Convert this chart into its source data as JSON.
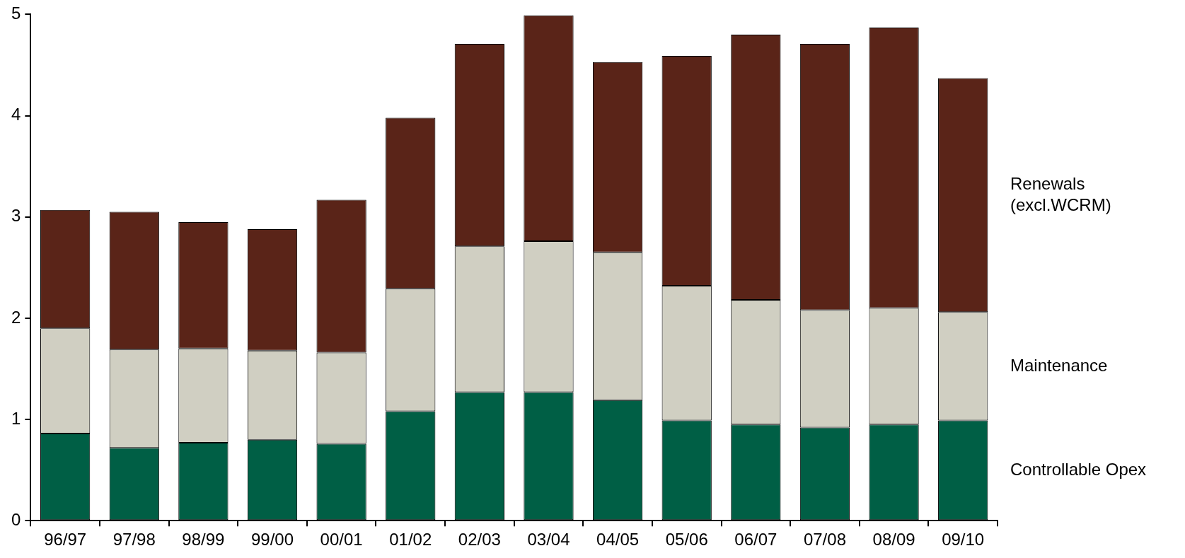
{
  "chart_data": {
    "type": "bar",
    "stacked": true,
    "legend": "right",
    "grid": false,
    "categories": [
      "96/97",
      "97/98",
      "98/99",
      "99/00",
      "00/01",
      "01/02",
      "02/03",
      "03/04",
      "04/05",
      "05/06",
      "06/07",
      "07/08",
      "08/09",
      "09/10"
    ],
    "series": [
      {
        "name": "Controllable Opex",
        "color": "#005f45",
        "values": [
          0.86,
          0.72,
          0.77,
          0.8,
          0.76,
          1.08,
          1.27,
          1.27,
          1.19,
          0.99,
          0.95,
          0.92,
          0.95,
          0.99
        ]
      },
      {
        "name": "Maintenance",
        "color": "#d0cfc2",
        "values": [
          1.04,
          0.97,
          0.93,
          0.88,
          0.9,
          1.21,
          1.44,
          1.49,
          1.46,
          1.33,
          1.23,
          1.16,
          1.15,
          1.07
        ]
      },
      {
        "name": "Renewals (excl.WCRM)",
        "color": "#5a2418",
        "values": [
          1.17,
          1.36,
          1.25,
          1.2,
          1.51,
          1.69,
          2.0,
          2.23,
          1.88,
          2.27,
          2.62,
          2.63,
          2.77,
          2.31
        ]
      }
    ],
    "ylim": [
      0,
      5
    ],
    "yticks": [
      0,
      1,
      2,
      3,
      4,
      5
    ]
  }
}
